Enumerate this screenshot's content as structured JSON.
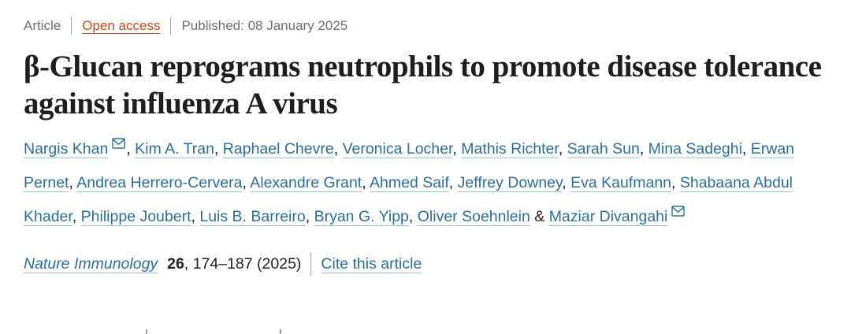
{
  "colors": {
    "accent_orange": "#c6481e",
    "link_blue": "#2d6d9f",
    "text_dark": "#1e1e1e",
    "muted_gray": "#6e6e6e"
  },
  "icons": {
    "envelope-icon": "✉"
  },
  "meta": {
    "article_type": "Article",
    "open_access_label": "Open access",
    "published": "Published: 08 January 2025"
  },
  "title": "β-Glucan reprograms neutrophils to promote disease tolerance against influenza A virus",
  "authors": [
    {
      "name": "Nargis Khan",
      "email": true
    },
    {
      "name": "Kim A. Tran"
    },
    {
      "name": "Raphael Chevre"
    },
    {
      "name": "Veronica Locher"
    },
    {
      "name": "Mathis Richter"
    },
    {
      "name": "Sarah Sun"
    },
    {
      "name": "Mina Sadeghi"
    },
    {
      "name": "Erwan Pernet"
    },
    {
      "name": "Andrea Herrero-Cervera"
    },
    {
      "name": "Alexandre Grant"
    },
    {
      "name": "Ahmed Saif"
    },
    {
      "name": "Jeffrey Downey"
    },
    {
      "name": "Eva Kaufmann"
    },
    {
      "name": "Shabaana Abdul Khader"
    },
    {
      "name": "Philippe Joubert"
    },
    {
      "name": "Luis B. Barreiro"
    },
    {
      "name": "Bryan G. Yipp"
    },
    {
      "name": "Oliver Soehnlein"
    },
    {
      "name": "Maziar Divangahi",
      "email": true
    }
  ],
  "author_separator": ", ",
  "author_last_separator": " & ",
  "journal": {
    "name": "Nature Immunology",
    "volume": "26",
    "pages_and_year": ", 174–187 (2025)",
    "cite_label": "Cite this article"
  }
}
